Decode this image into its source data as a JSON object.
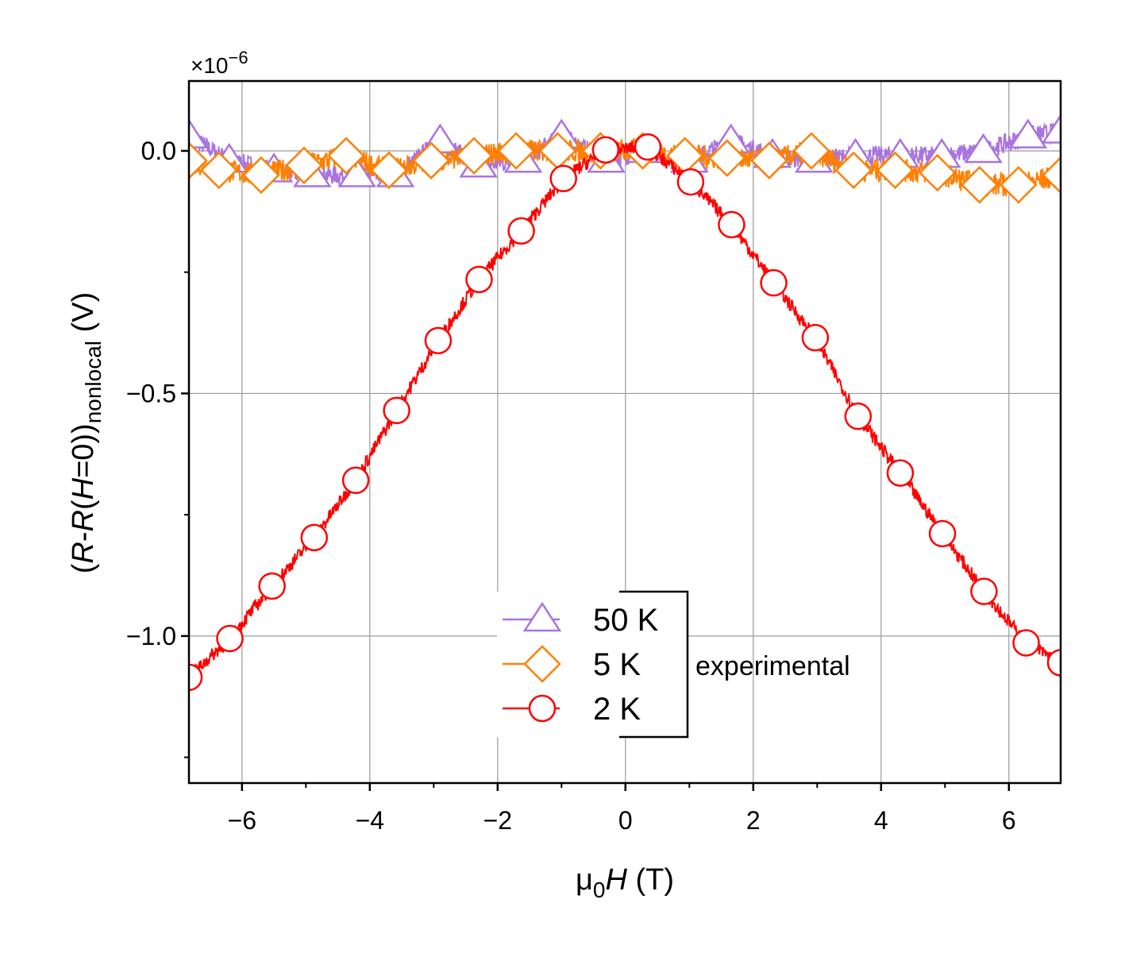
{
  "chart_data": {
    "type": "line",
    "xlabel": {
      "prefix": "μ",
      "sub": "0",
      "var": "H",
      "unit": " (T)"
    },
    "ylabel": {
      "open": "(",
      "r1": "R",
      "dash": "-",
      "r2": "R",
      "paren": "(",
      "h": "H",
      "eq": "=0))",
      "sub": "nonlocal",
      "unit": " (V)"
    },
    "y_multiplier": "×10",
    "y_multiplier_exp": "−6",
    "xlim": [
      -6.83,
      6.81
    ],
    "ylim": [
      -1.303,
      0.144
    ],
    "xticks": [
      -6,
      -4,
      -2,
      0,
      2,
      4,
      6
    ],
    "xtick_labels": [
      "−6",
      "−4",
      "−2",
      "0",
      "2",
      "4",
      "6"
    ],
    "yticks": [
      0.0,
      -0.5,
      -1.0
    ],
    "ytick_labels": [
      "0.0",
      "−0.5",
      "−1.0"
    ],
    "grid": true,
    "legend_position": "bottom-center",
    "legend_group_label": "experimental",
    "series": [
      {
        "name": "50 K",
        "color": "#a973e0",
        "marker": "triangle",
        "points": [
          [
            -6.83,
            0.03
          ],
          [
            -6.2,
            -0.02
          ],
          [
            -5.5,
            -0.04
          ],
          [
            -4.9,
            -0.05
          ],
          [
            -4.2,
            -0.05
          ],
          [
            -3.6,
            -0.05
          ],
          [
            -2.9,
            0.02
          ],
          [
            -2.3,
            -0.03
          ],
          [
            -1.6,
            -0.02
          ],
          [
            -1.0,
            0.03
          ],
          [
            -0.3,
            -0.02
          ],
          [
            0.3,
            0.0
          ],
          [
            1.0,
            -0.02
          ],
          [
            1.65,
            0.02
          ],
          [
            2.3,
            -0.01
          ],
          [
            2.95,
            -0.02
          ],
          [
            3.6,
            -0.01
          ],
          [
            4.3,
            -0.01
          ],
          [
            4.95,
            -0.01
          ],
          [
            5.6,
            0.0
          ],
          [
            6.3,
            0.03
          ],
          [
            6.81,
            0.04
          ]
        ]
      },
      {
        "name": "5 K",
        "color": "#ff8000",
        "marker": "diamond",
        "points": [
          [
            -6.83,
            -0.02
          ],
          [
            -6.36,
            -0.04
          ],
          [
            -5.7,
            -0.05
          ],
          [
            -5.03,
            -0.03
          ],
          [
            -4.37,
            -0.01
          ],
          [
            -3.7,
            -0.04
          ],
          [
            -3.04,
            -0.02
          ],
          [
            -2.37,
            -0.01
          ],
          [
            -1.71,
            0.0
          ],
          [
            -1.06,
            0.0
          ],
          [
            -0.39,
            0.0
          ],
          [
            0.27,
            0.0
          ],
          [
            0.93,
            -0.01
          ],
          [
            1.59,
            -0.015
          ],
          [
            2.25,
            -0.02
          ],
          [
            2.91,
            0.0
          ],
          [
            3.57,
            -0.04
          ],
          [
            4.22,
            -0.04
          ],
          [
            4.88,
            -0.045
          ],
          [
            5.54,
            -0.07
          ],
          [
            6.15,
            -0.07
          ],
          [
            6.81,
            -0.05
          ]
        ]
      },
      {
        "name": "2 K",
        "color": "#ff0000",
        "marker": "circle",
        "points": [
          [
            -6.83,
            -1.085
          ],
          [
            -6.19,
            -1.005
          ],
          [
            -5.53,
            -0.897
          ],
          [
            -4.87,
            -0.797
          ],
          [
            -4.22,
            -0.679
          ],
          [
            -3.58,
            -0.535
          ],
          [
            -2.93,
            -0.391
          ],
          [
            -2.29,
            -0.265
          ],
          [
            -1.63,
            -0.165
          ],
          [
            -0.97,
            -0.057
          ],
          [
            -0.31,
            0.002
          ],
          [
            0.35,
            0.008
          ],
          [
            1.02,
            -0.064
          ],
          [
            1.66,
            -0.152
          ],
          [
            2.32,
            -0.272
          ],
          [
            2.97,
            -0.385
          ],
          [
            3.64,
            -0.547
          ],
          [
            4.3,
            -0.664
          ],
          [
            4.96,
            -0.789
          ],
          [
            5.61,
            -0.908
          ],
          [
            6.27,
            -1.014
          ],
          [
            6.81,
            -1.055
          ]
        ]
      }
    ]
  }
}
